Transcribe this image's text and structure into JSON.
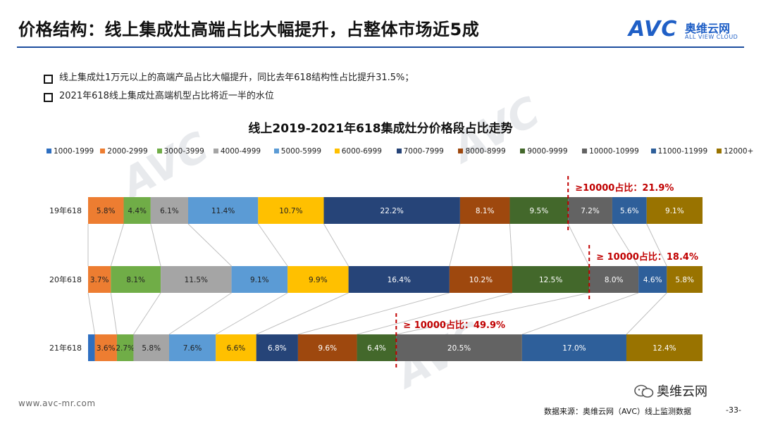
{
  "header": {
    "title": "价格结构：线上集成灶高端占比大幅提升，占整体市场近5成",
    "logo_mark": "AVC",
    "logo_cn": "奥维云网",
    "logo_en": "ALL VIEW CLOUD"
  },
  "bullets": [
    "线上集成灶1万元以上的高端产品占比大幅提升，同比去年618结构性占比提升31.5%；",
    "2021年618线上集成灶高端机型占比将近一半的水位"
  ],
  "chart_data": {
    "type": "bar",
    "orientation": "horizontal",
    "stacked": "100%",
    "title": "线上2019-2021年618集成灶分价格段占比走势",
    "categories": [
      "19年618",
      "20年618",
      "21年618"
    ],
    "series": [
      {
        "name": "1000-1999",
        "color": "#2e6fc1",
        "values": [
          0,
          0,
          1.1
        ],
        "labels": [
          "",
          "",
          ""
        ]
      },
      {
        "name": "2000-2999",
        "color": "#ed7d31",
        "values": [
          5.8,
          3.7,
          3.6
        ],
        "labels": [
          "5.8%",
          "3.7%",
          "3.6%"
        ]
      },
      {
        "name": "3000-3999",
        "color": "#70ad47",
        "values": [
          4.4,
          8.1,
          2.7
        ],
        "labels": [
          "4.4%",
          "8.1%",
          "2.7%"
        ]
      },
      {
        "name": "4000-4999",
        "color": "#a5a5a5",
        "values": [
          6.1,
          11.5,
          5.8
        ],
        "labels": [
          "6.1%",
          "11.5%",
          "5.8%"
        ]
      },
      {
        "name": "5000-5999",
        "color": "#5b9bd5",
        "values": [
          11.4,
          9.1,
          7.6
        ],
        "labels": [
          "11.4%",
          "9.1%",
          "7.6%"
        ]
      },
      {
        "name": "6000-6999",
        "color": "#ffc000",
        "values": [
          10.7,
          9.9,
          6.6
        ],
        "labels": [
          "10.7%",
          "9.9%",
          "6.6%"
        ]
      },
      {
        "name": "7000-7999",
        "color": "#264478",
        "values": [
          22.2,
          16.4,
          6.8
        ],
        "labels": [
          "22.2%",
          "16.4%",
          "6.8%"
        ]
      },
      {
        "name": "8000-8999",
        "color": "#9e480e",
        "values": [
          8.1,
          10.2,
          9.6
        ],
        "labels": [
          "8.1%",
          "10.2%",
          "9.6%"
        ]
      },
      {
        "name": "9000-9999",
        "color": "#43682b",
        "values": [
          9.5,
          12.5,
          6.4
        ],
        "labels": [
          "9.5%",
          "12.5%",
          "6.4%"
        ]
      },
      {
        "name": "10000-10999",
        "color": "#636363",
        "values": [
          7.2,
          8.0,
          20.5
        ],
        "labels": [
          "7.2%",
          "8.0%",
          "20.5%"
        ]
      },
      {
        "name": "11000-11999",
        "color": "#2e5f9a",
        "values": [
          5.6,
          4.6,
          17.0
        ],
        "labels": [
          "5.6%",
          "4.6%",
          "17.0%"
        ]
      },
      {
        "name": "12000+",
        "color": "#997300",
        "values": [
          9.1,
          5.8,
          12.4
        ],
        "labels": [
          "9.1%",
          "5.8%",
          "12.4%"
        ]
      }
    ],
    "annotations": [
      {
        "category": "19年618",
        "text": "≥10000占比：21.9%",
        "threshold_series": "10000-10999"
      },
      {
        "category": "20年618",
        "text": "≥ 10000占比：18.4%",
        "threshold_series": "10000-10999"
      },
      {
        "category": "21年618",
        "text": "≥ 10000占比：49.9%",
        "threshold_series": "10000-10999"
      }
    ],
    "xlim": [
      0,
      100
    ],
    "grid": false,
    "legend_position": "top"
  },
  "footer": {
    "website": "www.avc-mr.com",
    "source": "数据来源：奥维云网（AVC）线上监测数据",
    "page": "-33-",
    "wechat": "奥维云网"
  },
  "colors": {
    "accent": "#1d4e9e",
    "annotation": "#c00000",
    "connector": "#bfbfbf"
  }
}
